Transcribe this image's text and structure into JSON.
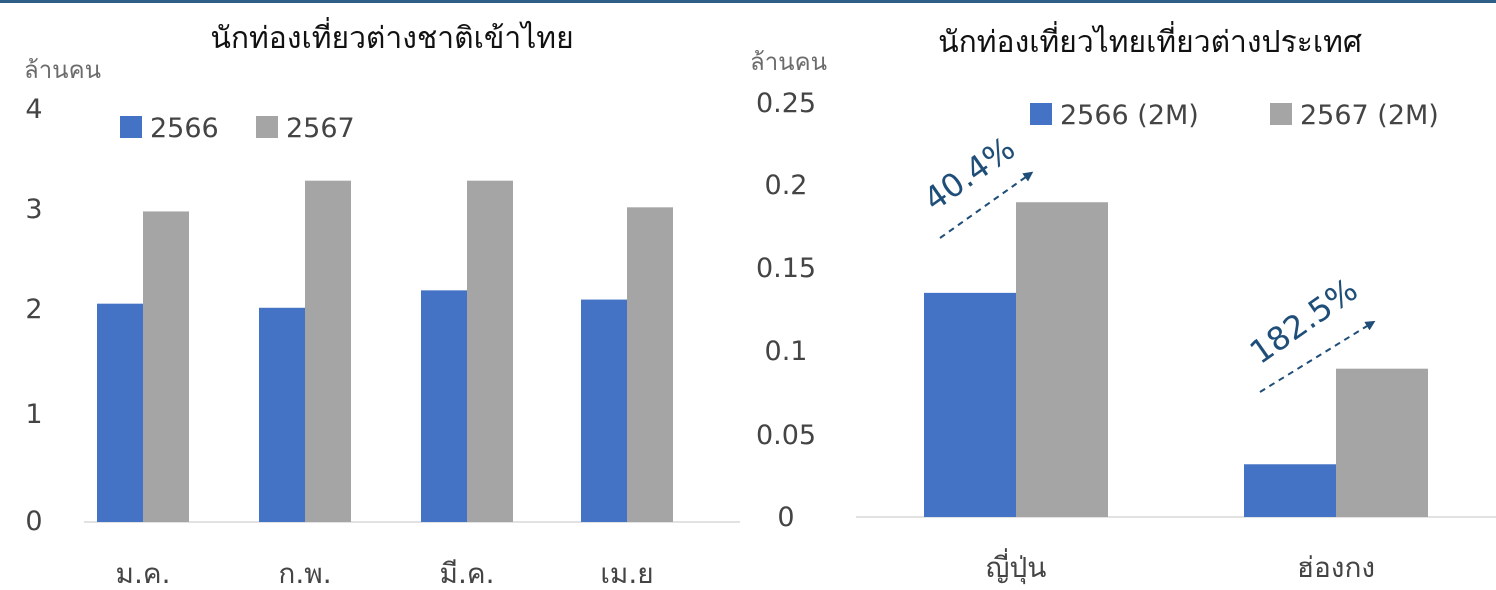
{
  "chart_data": [
    {
      "type": "bar",
      "title": "นักท่องเที่ยวต่างชาติเข้าไทย",
      "ylabel": "ล้านคน",
      "categories": [
        "ม.ค.",
        "ก.พ.",
        "มี.ค.",
        "เม.ย"
      ],
      "series": [
        {
          "name": "2566",
          "values": [
            2.13,
            2.09,
            2.26,
            2.17
          ],
          "color": "#4472c4"
        },
        {
          "name": "2567",
          "values": [
            3.03,
            3.33,
            3.33,
            3.07
          ],
          "color": "#a5a5a5"
        }
      ],
      "yticks": [
        "0",
        "1",
        "2",
        "3",
        "4"
      ],
      "ylim": [
        0,
        4
      ],
      "legend_position": "top-left",
      "grid": false
    },
    {
      "type": "bar",
      "title": "นักท่องเที่ยวไทยเที่ยวต่างประเทศ",
      "ylabel": "ล้านคน",
      "categories": [
        "ญี่ปุ่น",
        "ฮ่องกง"
      ],
      "series": [
        {
          "name": "2566 (2M)",
          "values": [
            0.136,
            0.032
          ],
          "color": "#4472c4"
        },
        {
          "name": "2567 (2M)",
          "values": [
            0.191,
            0.09
          ],
          "color": "#a5a5a5"
        }
      ],
      "yticks": [
        "0",
        "0.05",
        "0.1",
        "0.15",
        "0.2",
        "0.25"
      ],
      "ylim": [
        0,
        0.25
      ],
      "legend_position": "top",
      "grid": false,
      "annotations": [
        "40.4%",
        "182.5%"
      ]
    }
  ]
}
